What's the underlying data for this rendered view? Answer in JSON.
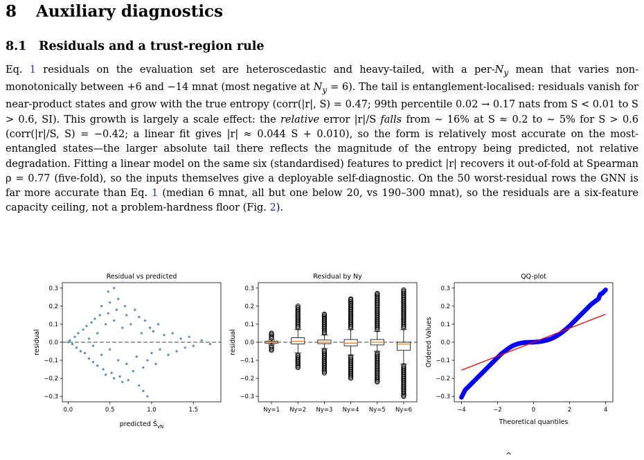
{
  "section": {
    "number": "8",
    "title": "Auxiliary diagnostics"
  },
  "subsection": {
    "number": "8.1",
    "title": "Residuals and a trust-region rule"
  },
  "paragraph": {
    "eq_word": "Eq.",
    "eq_ref": "1",
    "p1": " residuals on the evaluation set are heteroscedastic and heavy-tailed, with a per-",
    "Ny": "N",
    "Ny_sub": "y",
    "p2": " mean that varies non-monotonically between +6 and −14 mnat (most negative at ",
    "p3": " = 6). The tail is entanglement-localised: residuals vanish for near-product states and grow with the true entropy (corr(|r|, S) = 0.47; 99th percentile 0.02 → 0.17 nats from S < 0.01 to S > 0.6, SI). This growth is largely a scale effect: the ",
    "relative": "relative",
    "p4": " error |r|/S ",
    "falls": "falls",
    "p5": " from ∼ 16% at S ≈ 0.2 to ∼ 5% for S > 0.6 (corr(|r|/S, S) = −0.42; a linear fit gives |r| ≈ 0.044 S + 0.010), so the form is relatively most accurate on the most-entangled states—the larger absolute tail there reflects the magnitude of the entropy being predicted, not relative degradation. Fitting a linear model on the same six (standardised) features to predict |r| recovers it out-of-fold at Spearman ρ = 0.77 (five-fold), so the inputs themselves give a deployable self-diagnostic. On the 50 worst-residual rows the GNN is far more accurate than Eq. ",
    "eq_ref2": "1",
    "p6": " (median 6 mnat, all but one below 20, vs 190–300 mnat), so the residuals are a six-feature capacity ceiling, not a problem-hardness floor (Fig. ",
    "fig_ref": "2",
    "p7": ")."
  },
  "footer_mark": "^",
  "colors": {
    "scatter": "#2a7ab8",
    "box": "#000000",
    "median": "#ff7f0e",
    "qq_points": "#0000ff",
    "qq_line": "#ff0000",
    "zero_line": "#808080"
  },
  "chart_data": [
    {
      "type": "scatter",
      "title": "Residual vs predicted",
      "xlabel": "predicted Ŝ",
      "xlabel_sub": "vN",
      "ylabel": "residual",
      "xlim": [
        -0.07,
        1.83
      ],
      "ylim": [
        -0.33,
        0.33
      ],
      "xticks": [
        0.0,
        0.5,
        1.0,
        1.5
      ],
      "xtick_labels": [
        "0.0",
        "0.5",
        "1.0",
        "1.5"
      ],
      "yticks": [
        0.3,
        0.2,
        0.1,
        0.0,
        -0.1,
        -0.2,
        -0.3
      ],
      "ytick_labels": [
        "0.3",
        "0.2",
        "0.1",
        "0.0",
        "−0.1",
        "−0.2",
        "−0.3"
      ],
      "reference_line": 0,
      "points": [
        [
          0.0,
          0.0
        ],
        [
          0.02,
          0.01
        ],
        [
          0.05,
          -0.01
        ],
        [
          0.08,
          0.03
        ],
        [
          0.1,
          -0.03
        ],
        [
          0.12,
          0.05
        ],
        [
          0.15,
          -0.05
        ],
        [
          0.18,
          0.07
        ],
        [
          0.2,
          -0.06
        ],
        [
          0.22,
          0.09
        ],
        [
          0.25,
          0.02
        ],
        [
          0.25,
          -0.09
        ],
        [
          0.28,
          0.11
        ],
        [
          0.3,
          -0.02
        ],
        [
          0.3,
          -0.11
        ],
        [
          0.32,
          0.13
        ],
        [
          0.35,
          0.05
        ],
        [
          0.35,
          -0.13
        ],
        [
          0.38,
          0.15
        ],
        [
          0.4,
          -0.07
        ],
        [
          0.4,
          0.2
        ],
        [
          0.42,
          -0.15
        ],
        [
          0.45,
          0.1
        ],
        [
          0.45,
          -0.18
        ],
        [
          0.48,
          0.16
        ],
        [
          0.5,
          -0.04
        ],
        [
          0.5,
          0.22
        ],
        [
          0.52,
          -0.17
        ],
        [
          0.55,
          0.12
        ],
        [
          0.55,
          -0.2
        ],
        [
          0.58,
          0.18
        ],
        [
          0.6,
          -0.1
        ],
        [
          0.6,
          0.24
        ],
        [
          0.62,
          -0.19
        ],
        [
          0.65,
          0.08
        ],
        [
          0.65,
          -0.22
        ],
        [
          0.68,
          0.2
        ],
        [
          0.7,
          -0.12
        ],
        [
          0.7,
          0.15
        ],
        [
          0.72,
          -0.21
        ],
        [
          0.75,
          0.1
        ],
        [
          0.78,
          -0.16
        ],
        [
          0.8,
          0.18
        ],
        [
          0.82,
          -0.08
        ],
        [
          0.85,
          0.14
        ],
        [
          0.85,
          -0.24
        ],
        [
          0.88,
          0.05
        ],
        [
          0.9,
          -0.14
        ],
        [
          0.92,
          0.12
        ],
        [
          0.95,
          -0.1
        ],
        [
          0.98,
          0.08
        ],
        [
          1.0,
          -0.06
        ],
        [
          1.02,
          0.06
        ],
        [
          1.05,
          -0.12
        ],
        [
          1.08,
          0.1
        ],
        [
          1.1,
          -0.04
        ],
        [
          1.15,
          0.04
        ],
        [
          1.2,
          -0.07
        ],
        [
          1.25,
          0.05
        ],
        [
          1.3,
          -0.05
        ],
        [
          1.35,
          0.02
        ],
        [
          1.4,
          -0.03
        ],
        [
          1.45,
          0.03
        ],
        [
          1.5,
          -0.02
        ],
        [
          1.6,
          0.01
        ],
        [
          1.7,
          -0.01
        ],
        [
          0.48,
          0.28
        ],
        [
          0.55,
          0.3
        ],
        [
          0.9,
          -0.27
        ],
        [
          0.95,
          -0.3
        ]
      ]
    },
    {
      "type": "box",
      "title": "Residual by Ny",
      "ylabel": "residual",
      "categories": [
        "Ny=1",
        "Ny=2",
        "Ny=3",
        "Ny=4",
        "Ny=5",
        "Ny=6"
      ],
      "ylim": [
        -0.33,
        0.33
      ],
      "yticks": [
        0.3,
        0.2,
        0.1,
        0.0,
        -0.1,
        -0.2,
        -0.3
      ],
      "ytick_labels": [
        "0.3",
        "0.2",
        "0.1",
        "0.0",
        "−0.1",
        "−0.2",
        "−0.3"
      ],
      "reference_line": 0,
      "boxes": [
        {
          "q1": -0.005,
          "median": 0.0,
          "q3": 0.005,
          "whisker_low": -0.012,
          "whisker_high": 0.012,
          "flier_low": -0.045,
          "flier_high": 0.05
        },
        {
          "q1": -0.01,
          "median": 0.005,
          "q3": 0.025,
          "whisker_low": -0.06,
          "whisker_high": 0.07,
          "flier_low": -0.14,
          "flier_high": 0.2
        },
        {
          "q1": -0.008,
          "median": 0.0,
          "q3": 0.012,
          "whisker_low": -0.035,
          "whisker_high": 0.04,
          "flier_low": -0.17,
          "flier_high": 0.155
        },
        {
          "q1": -0.02,
          "median": -0.005,
          "q3": 0.015,
          "whisker_low": -0.07,
          "whisker_high": 0.07,
          "flier_low": -0.2,
          "flier_high": 0.24
        },
        {
          "q1": -0.015,
          "median": 0.0,
          "q3": 0.015,
          "whisker_low": -0.05,
          "whisker_high": 0.06,
          "flier_low": -0.22,
          "flier_high": 0.27
        },
        {
          "q1": -0.045,
          "median": -0.01,
          "q3": 0.0,
          "whisker_low": -0.12,
          "whisker_high": 0.07,
          "flier_low": -0.3,
          "flier_high": 0.29
        }
      ]
    },
    {
      "type": "scatter",
      "title": "QQ-plot",
      "xlabel": "Theoretical quantiles",
      "ylabel": "Ordered Values",
      "xlim": [
        -4.4,
        4.4
      ],
      "ylim": [
        -0.33,
        0.33
      ],
      "xticks": [
        -4,
        -2,
        0,
        2,
        4
      ],
      "xtick_labels": [
        "−4",
        "−2",
        "0",
        "2",
        "4"
      ],
      "yticks": [
        0.3,
        0.2,
        0.1,
        0.0,
        -0.1,
        -0.2,
        -0.3
      ],
      "ytick_labels": [
        "0.3",
        "0.2",
        "0.1",
        "0.0",
        "−0.1",
        "−0.2",
        "−0.3"
      ],
      "fit_line": [
        [
          -4.0,
          -0.155
        ],
        [
          4.0,
          0.155
        ]
      ],
      "points": [
        [
          -4.0,
          -0.305
        ],
        [
          -3.8,
          -0.265
        ],
        [
          -3.6,
          -0.245
        ],
        [
          -3.4,
          -0.225
        ],
        [
          -3.2,
          -0.205
        ],
        [
          -3.0,
          -0.185
        ],
        [
          -2.8,
          -0.165
        ],
        [
          -2.6,
          -0.145
        ],
        [
          -2.4,
          -0.125
        ],
        [
          -2.2,
          -0.105
        ],
        [
          -2.0,
          -0.085
        ],
        [
          -1.8,
          -0.065
        ],
        [
          -1.6,
          -0.05
        ],
        [
          -1.4,
          -0.035
        ],
        [
          -1.2,
          -0.022
        ],
        [
          -1.0,
          -0.013
        ],
        [
          -0.8,
          -0.007
        ],
        [
          -0.6,
          -0.003
        ],
        [
          -0.4,
          -0.001
        ],
        [
          -0.2,
          0.0
        ],
        [
          0.0,
          0.0
        ],
        [
          0.2,
          0.002
        ],
        [
          0.4,
          0.004
        ],
        [
          0.6,
          0.008
        ],
        [
          0.8,
          0.013
        ],
        [
          1.0,
          0.02
        ],
        [
          1.2,
          0.03
        ],
        [
          1.4,
          0.042
        ],
        [
          1.6,
          0.056
        ],
        [
          1.8,
          0.072
        ],
        [
          2.0,
          0.09
        ],
        [
          2.2,
          0.11
        ],
        [
          2.4,
          0.13
        ],
        [
          2.6,
          0.15
        ],
        [
          2.8,
          0.17
        ],
        [
          3.0,
          0.19
        ],
        [
          3.2,
          0.21
        ],
        [
          3.4,
          0.225
        ],
        [
          3.6,
          0.24
        ],
        [
          3.7,
          0.265
        ],
        [
          3.8,
          0.27
        ],
        [
          4.0,
          0.29
        ]
      ]
    }
  ]
}
